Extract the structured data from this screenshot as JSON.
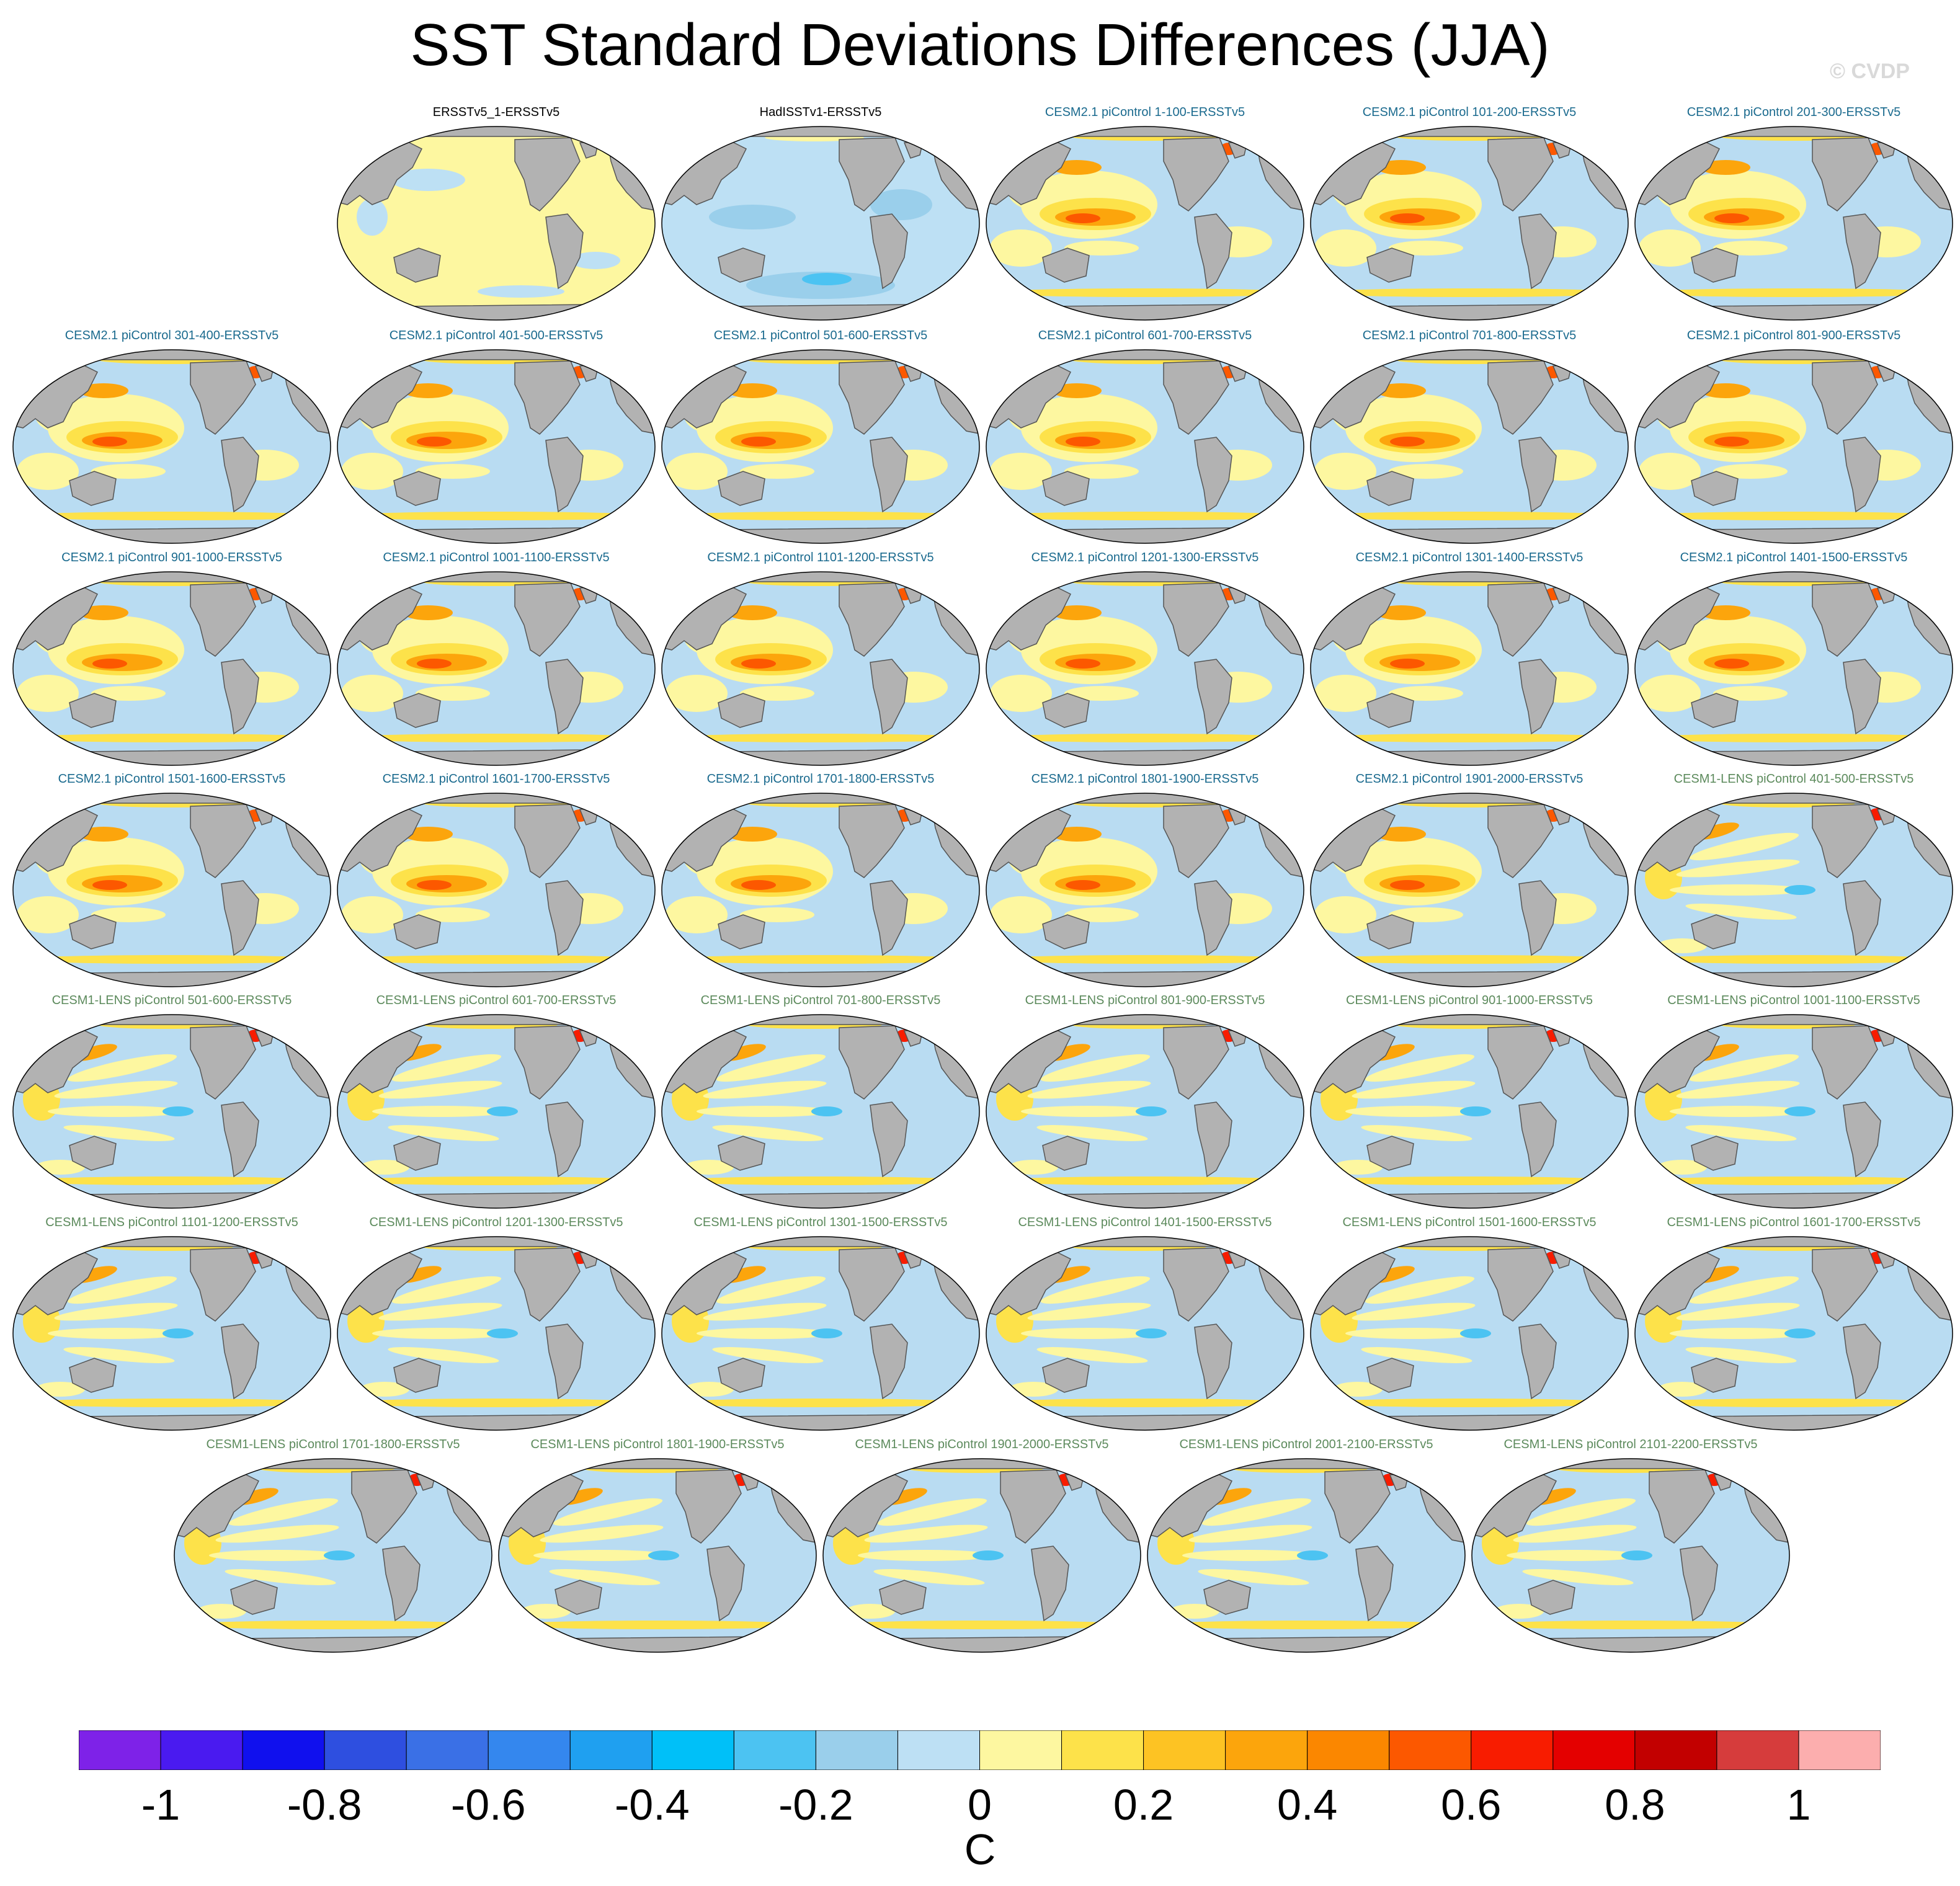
{
  "title": "SST Standard Deviations Differences (JJA)",
  "watermark": "© CVDP",
  "colors": {
    "ocean_base": "#b9dcf2",
    "land": "#b2b2b2",
    "coast": "#555555",
    "obs_title": "#000000",
    "cesm2_title": "#1a6a8e",
    "cesm1_title": "#5c8a5c"
  },
  "panels": [
    {
      "label": "ERSSTv5_1-ERSSTv5",
      "group": "obs",
      "base": "#fdf7a0",
      "pattern": "pale"
    },
    {
      "label": "HadISSTv1-ERSSTv5",
      "group": "obs",
      "base": "#bde0f4",
      "pattern": "neg"
    },
    {
      "label": "CESM2.1 piControl 1-100-ERSSTv5",
      "group": "cesm2",
      "pattern": "enso"
    },
    {
      "label": "CESM2.1 piControl 101-200-ERSSTv5",
      "group": "cesm2",
      "pattern": "enso"
    },
    {
      "label": "CESM2.1 piControl 201-300-ERSSTv5",
      "group": "cesm2",
      "pattern": "enso"
    },
    {
      "label": "CESM2.1 piControl 301-400-ERSSTv5",
      "group": "cesm2",
      "pattern": "enso"
    },
    {
      "label": "CESM2.1 piControl 401-500-ERSSTv5",
      "group": "cesm2",
      "pattern": "enso"
    },
    {
      "label": "CESM2.1 piControl 501-600-ERSSTv5",
      "group": "cesm2",
      "pattern": "enso"
    },
    {
      "label": "CESM2.1 piControl 601-700-ERSSTv5",
      "group": "cesm2",
      "pattern": "enso"
    },
    {
      "label": "CESM2.1 piControl 701-800-ERSSTv5",
      "group": "cesm2",
      "pattern": "enso"
    },
    {
      "label": "CESM2.1 piControl 801-900-ERSSTv5",
      "group": "cesm2",
      "pattern": "enso"
    },
    {
      "label": "CESM2.1 piControl 901-1000-ERSSTv5",
      "group": "cesm2",
      "pattern": "enso"
    },
    {
      "label": "CESM2.1 piControl 1001-1100-ERSSTv5",
      "group": "cesm2",
      "pattern": "enso"
    },
    {
      "label": "CESM2.1 piControl 1101-1200-ERSSTv5",
      "group": "cesm2",
      "pattern": "enso"
    },
    {
      "label": "CESM2.1 piControl 1201-1300-ERSSTv5",
      "group": "cesm2",
      "pattern": "enso"
    },
    {
      "label": "CESM2.1 piControl 1301-1400-ERSSTv5",
      "group": "cesm2",
      "pattern": "enso"
    },
    {
      "label": "CESM2.1 piControl 1401-1500-ERSSTv5",
      "group": "cesm2",
      "pattern": "enso"
    },
    {
      "label": "CESM2.1 piControl 1501-1600-ERSSTv5",
      "group": "cesm2",
      "pattern": "enso"
    },
    {
      "label": "CESM2.1 piControl 1601-1700-ERSSTv5",
      "group": "cesm2",
      "pattern": "enso"
    },
    {
      "label": "CESM2.1 piControl 1701-1800-ERSSTv5",
      "group": "cesm2",
      "pattern": "enso"
    },
    {
      "label": "CESM2.1 piControl 1801-1900-ERSSTv5",
      "group": "cesm2",
      "pattern": "enso"
    },
    {
      "label": "CESM2.1 piControl 1901-2000-ERSSTv5",
      "group": "cesm2",
      "pattern": "enso"
    },
    {
      "label": "CESM1-LENS piControl 401-500-ERSSTv5",
      "group": "cesm1",
      "pattern": "lens"
    },
    {
      "label": "CESM1-LENS piControl 501-600-ERSSTv5",
      "group": "cesm1",
      "pattern": "lens"
    },
    {
      "label": "CESM1-LENS piControl 601-700-ERSSTv5",
      "group": "cesm1",
      "pattern": "lens"
    },
    {
      "label": "CESM1-LENS piControl 701-800-ERSSTv5",
      "group": "cesm1",
      "pattern": "lens"
    },
    {
      "label": "CESM1-LENS piControl 801-900-ERSSTv5",
      "group": "cesm1",
      "pattern": "lens"
    },
    {
      "label": "CESM1-LENS piControl 901-1000-ERSSTv5",
      "group": "cesm1",
      "pattern": "lens"
    },
    {
      "label": "CESM1-LENS piControl 1001-1100-ERSSTv5",
      "group": "cesm1",
      "pattern": "lens"
    },
    {
      "label": "CESM1-LENS piControl 1101-1200-ERSSTv5",
      "group": "cesm1",
      "pattern": "lens"
    },
    {
      "label": "CESM1-LENS piControl 1201-1300-ERSSTv5",
      "group": "cesm1",
      "pattern": "lens"
    },
    {
      "label": "CESM1-LENS piControl 1301-1500-ERSSTv5",
      "group": "cesm1",
      "pattern": "lens"
    },
    {
      "label": "CESM1-LENS piControl 1401-1500-ERSSTv5",
      "group": "cesm1",
      "pattern": "lens"
    },
    {
      "label": "CESM1-LENS piControl 1501-1600-ERSSTv5",
      "group": "cesm1",
      "pattern": "lens"
    },
    {
      "label": "CESM1-LENS piControl 1601-1700-ERSSTv5",
      "group": "cesm1",
      "pattern": "lens"
    },
    {
      "label": "CESM1-LENS piControl 1701-1800-ERSSTv5",
      "group": "cesm1",
      "pattern": "lens"
    },
    {
      "label": "CESM1-LENS piControl 1801-1900-ERSSTv5",
      "group": "cesm1",
      "pattern": "lens"
    },
    {
      "label": "CESM1-LENS piControl 1901-2000-ERSSTv5",
      "group": "cesm1",
      "pattern": "lens"
    },
    {
      "label": "CESM1-LENS piControl 2001-2100-ERSSTv5",
      "group": "cesm1",
      "pattern": "lens"
    },
    {
      "label": "CESM1-LENS piControl 2101-2200-ERSSTv5",
      "group": "cesm1",
      "pattern": "lens"
    }
  ],
  "colorbar": {
    "colors": [
      "#7e22e8",
      "#4a1af0",
      "#1010ee",
      "#2e4fe0",
      "#3a70e6",
      "#3487ee",
      "#1fa0f0",
      "#00c0f8",
      "#4cc3f2",
      "#9acfeb",
      "#bde0f4",
      "#fdf7a0",
      "#fde24a",
      "#fdc323",
      "#fca50c",
      "#fb8700",
      "#fc5800",
      "#f81c00",
      "#e40000",
      "#c20000",
      "#d63c3c",
      "#fcaeae"
    ],
    "tick_labels": [
      "-1",
      "-0.8",
      "-0.6",
      "-0.4",
      "-0.2",
      "0",
      "0.2",
      "0.4",
      "0.6",
      "0.8",
      "1"
    ],
    "tick_values": [
      -1,
      -0.8,
      -0.6,
      -0.4,
      -0.2,
      0,
      0.2,
      0.4,
      0.6,
      0.8,
      1
    ],
    "min": -1.1,
    "max": 1.1,
    "units": "C"
  }
}
